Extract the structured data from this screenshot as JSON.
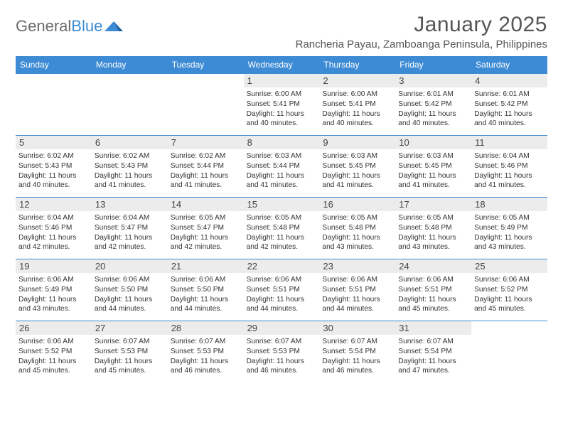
{
  "logo": {
    "text1": "General",
    "text2": "Blue"
  },
  "title": "January 2025",
  "location": "Rancheria Payau, Zamboanga Peninsula, Philippines",
  "colors": {
    "header_bg": "#3d8bd4",
    "header_text": "#ffffff",
    "daynum_bg": "#ececec",
    "text": "#333333",
    "rule": "#3d8bd4",
    "background": "#ffffff"
  },
  "day_labels": [
    "Sunday",
    "Monday",
    "Tuesday",
    "Wednesday",
    "Thursday",
    "Friday",
    "Saturday"
  ],
  "label_sunrise": "Sunrise: ",
  "label_sunset": "Sunset: ",
  "label_daylight1": "Daylight: ",
  "label_daylight2_prefix": "and ",
  "label_daylight2_suffix": " minutes.",
  "label_hours_suffix": " hours",
  "weeks": [
    [
      {
        "n": "",
        "empty": true
      },
      {
        "n": "",
        "empty": true
      },
      {
        "n": "",
        "empty": true
      },
      {
        "n": "1",
        "sunrise": "6:00 AM",
        "sunset": "5:41 PM",
        "dh": "11",
        "dm": "40"
      },
      {
        "n": "2",
        "sunrise": "6:00 AM",
        "sunset": "5:41 PM",
        "dh": "11",
        "dm": "40"
      },
      {
        "n": "3",
        "sunrise": "6:01 AM",
        "sunset": "5:42 PM",
        "dh": "11",
        "dm": "40"
      },
      {
        "n": "4",
        "sunrise": "6:01 AM",
        "sunset": "5:42 PM",
        "dh": "11",
        "dm": "40"
      }
    ],
    [
      {
        "n": "5",
        "sunrise": "6:02 AM",
        "sunset": "5:43 PM",
        "dh": "11",
        "dm": "40"
      },
      {
        "n": "6",
        "sunrise": "6:02 AM",
        "sunset": "5:43 PM",
        "dh": "11",
        "dm": "41"
      },
      {
        "n": "7",
        "sunrise": "6:02 AM",
        "sunset": "5:44 PM",
        "dh": "11",
        "dm": "41"
      },
      {
        "n": "8",
        "sunrise": "6:03 AM",
        "sunset": "5:44 PM",
        "dh": "11",
        "dm": "41"
      },
      {
        "n": "9",
        "sunrise": "6:03 AM",
        "sunset": "5:45 PM",
        "dh": "11",
        "dm": "41"
      },
      {
        "n": "10",
        "sunrise": "6:03 AM",
        "sunset": "5:45 PM",
        "dh": "11",
        "dm": "41"
      },
      {
        "n": "11",
        "sunrise": "6:04 AM",
        "sunset": "5:46 PM",
        "dh": "11",
        "dm": "41"
      }
    ],
    [
      {
        "n": "12",
        "sunrise": "6:04 AM",
        "sunset": "5:46 PM",
        "dh": "11",
        "dm": "42"
      },
      {
        "n": "13",
        "sunrise": "6:04 AM",
        "sunset": "5:47 PM",
        "dh": "11",
        "dm": "42"
      },
      {
        "n": "14",
        "sunrise": "6:05 AM",
        "sunset": "5:47 PM",
        "dh": "11",
        "dm": "42"
      },
      {
        "n": "15",
        "sunrise": "6:05 AM",
        "sunset": "5:48 PM",
        "dh": "11",
        "dm": "42"
      },
      {
        "n": "16",
        "sunrise": "6:05 AM",
        "sunset": "5:48 PM",
        "dh": "11",
        "dm": "43"
      },
      {
        "n": "17",
        "sunrise": "6:05 AM",
        "sunset": "5:48 PM",
        "dh": "11",
        "dm": "43"
      },
      {
        "n": "18",
        "sunrise": "6:05 AM",
        "sunset": "5:49 PM",
        "dh": "11",
        "dm": "43"
      }
    ],
    [
      {
        "n": "19",
        "sunrise": "6:06 AM",
        "sunset": "5:49 PM",
        "dh": "11",
        "dm": "43"
      },
      {
        "n": "20",
        "sunrise": "6:06 AM",
        "sunset": "5:50 PM",
        "dh": "11",
        "dm": "44"
      },
      {
        "n": "21",
        "sunrise": "6:06 AM",
        "sunset": "5:50 PM",
        "dh": "11",
        "dm": "44"
      },
      {
        "n": "22",
        "sunrise": "6:06 AM",
        "sunset": "5:51 PM",
        "dh": "11",
        "dm": "44"
      },
      {
        "n": "23",
        "sunrise": "6:06 AM",
        "sunset": "5:51 PM",
        "dh": "11",
        "dm": "44"
      },
      {
        "n": "24",
        "sunrise": "6:06 AM",
        "sunset": "5:51 PM",
        "dh": "11",
        "dm": "45"
      },
      {
        "n": "25",
        "sunrise": "6:06 AM",
        "sunset": "5:52 PM",
        "dh": "11",
        "dm": "45"
      }
    ],
    [
      {
        "n": "26",
        "sunrise": "6:06 AM",
        "sunset": "5:52 PM",
        "dh": "11",
        "dm": "45"
      },
      {
        "n": "27",
        "sunrise": "6:07 AM",
        "sunset": "5:53 PM",
        "dh": "11",
        "dm": "45"
      },
      {
        "n": "28",
        "sunrise": "6:07 AM",
        "sunset": "5:53 PM",
        "dh": "11",
        "dm": "46"
      },
      {
        "n": "29",
        "sunrise": "6:07 AM",
        "sunset": "5:53 PM",
        "dh": "11",
        "dm": "46"
      },
      {
        "n": "30",
        "sunrise": "6:07 AM",
        "sunset": "5:54 PM",
        "dh": "11",
        "dm": "46"
      },
      {
        "n": "31",
        "sunrise": "6:07 AM",
        "sunset": "5:54 PM",
        "dh": "11",
        "dm": "47"
      },
      {
        "n": "",
        "empty": true
      }
    ]
  ]
}
